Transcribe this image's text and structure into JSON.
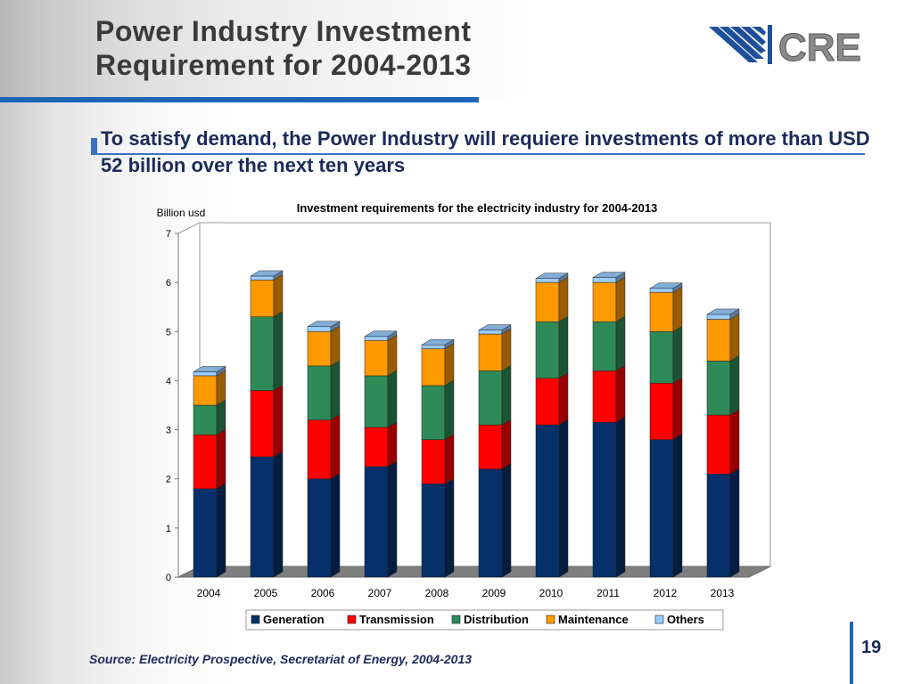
{
  "slide": {
    "title_line1": "Power Industry Investment",
    "title_line2": "Requirement for 2004-2013",
    "logo_text": "CRE",
    "subtitle": "To satisfy demand, the Power Industry will requiere investments of more than USD 52 billion over the next ten years",
    "source": "Source: Electricity Prospective, Secretariat of Energy, 2004-2013",
    "page_number": "19"
  },
  "colors": {
    "title_bar": "#1e64b4",
    "subtitle_text": "#1b2a5a"
  },
  "chart_data": {
    "type": "bar",
    "stacked": true,
    "three_d": true,
    "title": "Investment requirements for the electricity industry for 2004-2013",
    "ylabel": "Billion usd",
    "xlabel": "",
    "categories": [
      "2004",
      "2005",
      "2006",
      "2007",
      "2008",
      "2009",
      "2010",
      "2011",
      "2012",
      "2013"
    ],
    "ylim": [
      0,
      7
    ],
    "yticks": [
      "0",
      "1",
      "2",
      "3",
      "4",
      "5",
      "6",
      "7"
    ],
    "legend_position": "bottom",
    "series": [
      {
        "name": "Generation",
        "color": "#06306a",
        "values": [
          1.8,
          2.45,
          2.0,
          2.25,
          1.9,
          2.2,
          3.1,
          3.15,
          2.8,
          2.1
        ]
      },
      {
        "name": "Transmission",
        "color": "#ff0000",
        "values": [
          1.1,
          1.35,
          1.2,
          0.8,
          0.9,
          0.9,
          0.95,
          1.05,
          1.15,
          1.2
        ]
      },
      {
        "name": "Distribution",
        "color": "#2e8b57",
        "values": [
          0.6,
          1.5,
          1.1,
          1.05,
          1.1,
          1.1,
          1.15,
          1.0,
          1.05,
          1.1
        ]
      },
      {
        "name": "Maintenance",
        "color": "#ff9900",
        "values": [
          0.6,
          0.75,
          0.7,
          0.72,
          0.75,
          0.75,
          0.8,
          0.8,
          0.8,
          0.85
        ]
      },
      {
        "name": "Others",
        "color": "#99ccff",
        "values": [
          0.08,
          0.08,
          0.1,
          0.08,
          0.08,
          0.08,
          0.08,
          0.1,
          0.08,
          0.1
        ]
      }
    ]
  }
}
